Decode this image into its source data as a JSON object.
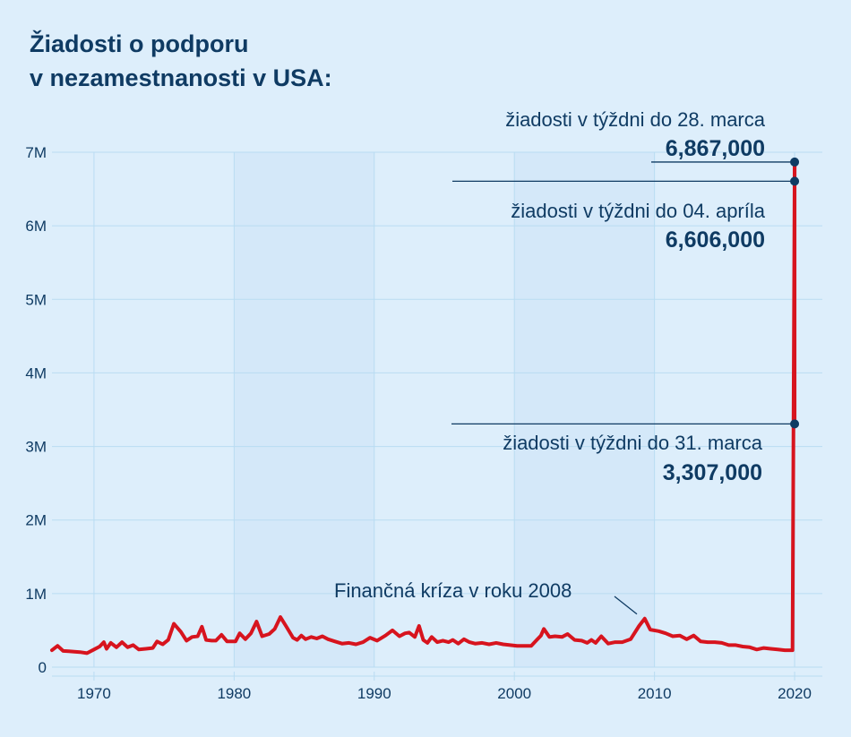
{
  "title_lines": [
    "Žiadosti o podporu",
    "v nezamestnanosti v USA:"
  ],
  "colors": {
    "background": "#ddeefb",
    "band": "#d4e8f9",
    "grid": "#b9dcf2",
    "line": "#d7141e",
    "text": "#0f3b63"
  },
  "chart_data": {
    "type": "line",
    "title": "Žiadosti o podporu v nezamestnanosti v USA:",
    "xlabel": "",
    "ylabel": "",
    "xlim": [
      1967,
      2021.5
    ],
    "ylim": [
      0,
      7000000
    ],
    "x_ticks": [
      1970,
      1980,
      1990,
      2000,
      2010,
      2020
    ],
    "x_tick_labels": [
      "1970",
      "1980",
      "1990",
      "2000",
      "2010",
      "2020"
    ],
    "y_ticks": [
      0,
      1000000,
      2000000,
      3000000,
      4000000,
      5000000,
      6000000,
      7000000
    ],
    "y_tick_labels": [
      "0",
      "1M",
      "2M",
      "3M",
      "4M",
      "5M",
      "6M",
      "7M"
    ],
    "grid": true,
    "series": [
      {
        "color": "#d7141e",
        "x": [
          1967.0,
          1967.4,
          1967.8,
          1968.2,
          1968.6,
          1969.0,
          1969.5,
          1970.0,
          1970.4,
          1970.7,
          1970.9,
          1971.2,
          1971.6,
          1972.0,
          1972.4,
          1972.8,
          1973.2,
          1973.7,
          1974.2,
          1974.5,
          1974.9,
          1975.3,
          1975.7,
          1976.2,
          1976.6,
          1977.0,
          1977.4,
          1977.7,
          1978.0,
          1978.4,
          1978.7,
          1979.1,
          1979.5,
          1979.8,
          1980.1,
          1980.4,
          1980.8,
          1981.2,
          1981.6,
          1982.0,
          1982.5,
          1982.9,
          1983.3,
          1983.7,
          1984.2,
          1984.5,
          1984.8,
          1985.1,
          1985.5,
          1985.9,
          1986.3,
          1986.7,
          1987.2,
          1987.7,
          1988.2,
          1988.7,
          1989.2,
          1989.7,
          1990.2,
          1990.8,
          1991.3,
          1991.8,
          1992.2,
          1992.5,
          1992.9,
          1993.2,
          1993.5,
          1993.8,
          1994.1,
          1994.5,
          1994.9,
          1995.3,
          1995.6,
          1996.0,
          1996.4,
          1996.8,
          1997.2,
          1997.7,
          1998.2,
          1998.7,
          1999.2,
          1999.7,
          2000.2,
          2000.7,
          2001.2,
          2001.6,
          2001.9,
          2002.1,
          2002.5,
          2002.9,
          2003.4,
          2003.8,
          2004.3,
          2004.8,
          2005.2,
          2005.5,
          2005.8,
          2006.2,
          2006.7,
          2007.2,
          2007.7,
          2008.3,
          2008.9,
          2009.3,
          2009.7,
          2010.3,
          2010.8,
          2011.3,
          2011.8,
          2012.3,
          2012.8,
          2013.3,
          2013.8,
          2014.3,
          2014.8,
          2015.3,
          2015.8,
          2016.3,
          2016.8,
          2017.3,
          2017.8,
          2018.3,
          2018.8,
          2019.3,
          2019.8,
          2019.85,
          2019.92,
          2020.0
        ],
        "values": [
          230000,
          290000,
          220000,
          215000,
          210000,
          205000,
          190000,
          240000,
          280000,
          340000,
          250000,
          330000,
          270000,
          340000,
          270000,
          300000,
          240000,
          250000,
          260000,
          350000,
          310000,
          370000,
          590000,
          480000,
          360000,
          410000,
          420000,
          550000,
          370000,
          360000,
          360000,
          440000,
          350000,
          350000,
          350000,
          460000,
          380000,
          460000,
          620000,
          420000,
          450000,
          520000,
          680000,
          560000,
          400000,
          370000,
          430000,
          380000,
          410000,
          390000,
          420000,
          380000,
          350000,
          320000,
          330000,
          310000,
          340000,
          400000,
          360000,
          430000,
          500000,
          420000,
          460000,
          470000,
          410000,
          560000,
          370000,
          330000,
          410000,
          340000,
          360000,
          340000,
          370000,
          320000,
          380000,
          340000,
          320000,
          330000,
          310000,
          330000,
          310000,
          300000,
          290000,
          290000,
          290000,
          370000,
          430000,
          520000,
          410000,
          420000,
          410000,
          450000,
          370000,
          360000,
          330000,
          370000,
          330000,
          420000,
          320000,
          340000,
          340000,
          380000,
          560000,
          660000,
          510000,
          490000,
          460000,
          420000,
          430000,
          380000,
          430000,
          350000,
          340000,
          340000,
          330000,
          300000,
          300000,
          280000,
          270000,
          240000,
          260000,
          250000,
          240000,
          230000,
          230000,
          230000,
          3307000,
          6867000
        ]
      }
    ],
    "annotations": [
      {
        "text": "žiadosti v týždni do 28. marca",
        "value": "6,867,000",
        "x": 2020.0,
        "y": 6867000
      },
      {
        "text": "žiadosti v týždni do 04. apríla",
        "value": "6,606,000",
        "x": 2020.0,
        "y": 6606000
      },
      {
        "text": "žiadosti v týždni do 31. marca",
        "value": "3,307,000",
        "x": 2020.0,
        "y": 3307000
      },
      {
        "text": "Finančná kríza v roku 2008",
        "x": 2009.0,
        "y": 660000
      }
    ]
  }
}
